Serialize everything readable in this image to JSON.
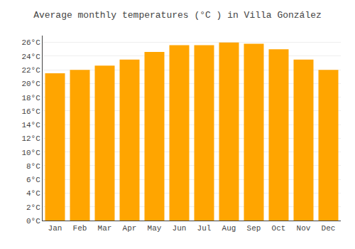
{
  "chart_data": {
    "type": "bar",
    "title": "Average monthly temperatures (°C ) in Villa González",
    "categories": [
      "Jan",
      "Feb",
      "Mar",
      "Apr",
      "May",
      "Jun",
      "Jul",
      "Aug",
      "Sep",
      "Oct",
      "Nov",
      "Dec"
    ],
    "values": [
      21.5,
      22.0,
      22.6,
      23.5,
      24.6,
      25.6,
      25.6,
      26.0,
      25.8,
      25.0,
      23.5,
      22.0
    ],
    "color": "#FFA500",
    "ylim": [
      0,
      27
    ],
    "yticks": [
      {
        "value": 0,
        "label": "0°C"
      },
      {
        "value": 2,
        "label": "2°C"
      },
      {
        "value": 4,
        "label": "4°C"
      },
      {
        "value": 6,
        "label": "6°C"
      },
      {
        "value": 8,
        "label": "8°C"
      },
      {
        "value": 10,
        "label": "10°C"
      },
      {
        "value": 12,
        "label": "12°C"
      },
      {
        "value": 14,
        "label": "14°C"
      },
      {
        "value": 16,
        "label": "16°C"
      },
      {
        "value": 18,
        "label": "18°C"
      },
      {
        "value": 20,
        "label": "20°C"
      },
      {
        "value": 22,
        "label": "22°C"
      },
      {
        "value": 24,
        "label": "24°C"
      },
      {
        "value": 26,
        "label": "26°C"
      }
    ],
    "grid": true
  }
}
